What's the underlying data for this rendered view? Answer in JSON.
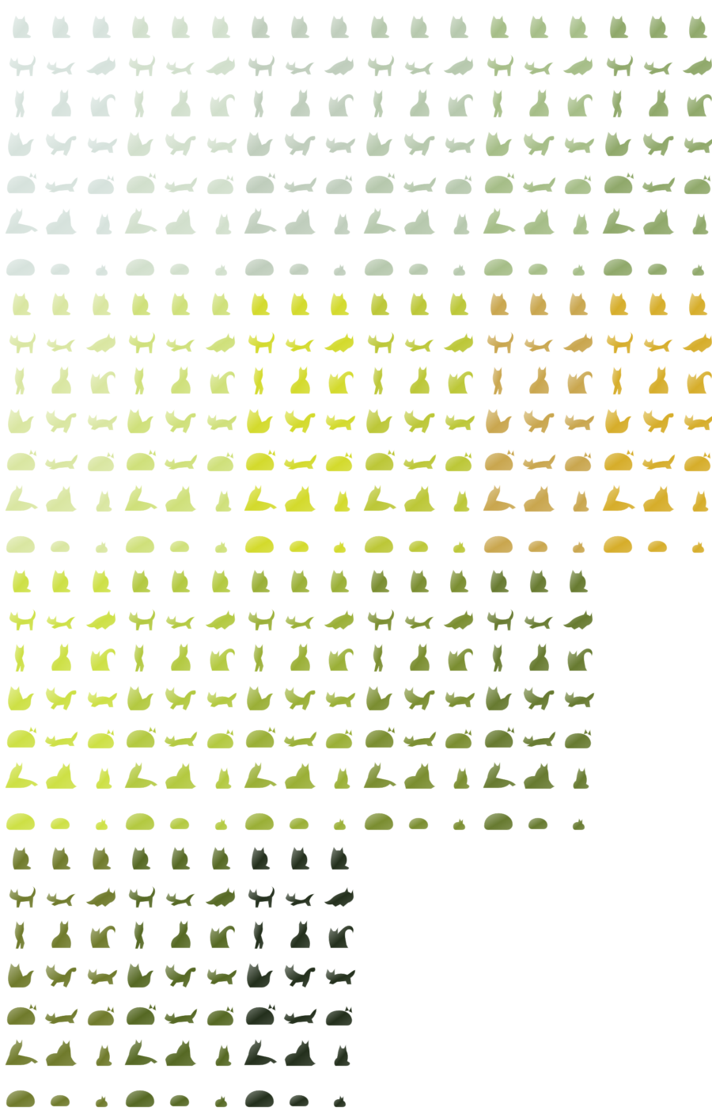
{
  "sheet": {
    "description_name": "cat-sprite-sheet",
    "poses": [
      [
        "cat-sitting-small-icon",
        "cat-sitting-small-icon",
        "cat-sitting-small-icon"
      ],
      [
        "cat-walking-icon",
        "cat-stretching-icon",
        "cat-pouncing-icon"
      ],
      [
        "cat-standing-up-icon",
        "cat-sitting-icon",
        "cat-sitting-tail-curl-icon"
      ],
      [
        "cat-sitting-fluffy-icon",
        "cat-leaping-icon",
        "cat-crouching-icon"
      ],
      [
        "cat-loaf-icon",
        "cat-creeping-icon",
        "cat-curled-icon"
      ],
      [
        "cat-stretching-long-icon",
        "cat-lying-icon",
        "cat-kitten-sitting-icon"
      ],
      [
        "cat-sleeping-ball-icon",
        "cat-sleeping-small-icon",
        "cat-tiny-sleeping-icon"
      ]
    ],
    "blocks": [
      {
        "name": "pale-green-block",
        "variants": [
          "#d6e2dc",
          "#d1dfcc",
          "#bfcdbc",
          "#b6c8ad",
          "#a5bd87",
          "#8fa86a"
        ]
      },
      {
        "name": "yellow-block",
        "variants": [
          "#d9e6a1",
          "#cfe07a",
          "#d3da2c",
          "#bcc737",
          "#c9a64e",
          "#d6ad2a"
        ]
      },
      {
        "name": "olive-block",
        "variants": [
          "#cde045",
          "#b3c940",
          "#9aaf36",
          "#7a8d30",
          "#677a30"
        ]
      },
      {
        "name": "dark-olive-block",
        "variants": [
          "#6f7a2b",
          "#556823",
          "#232f1c"
        ]
      }
    ]
  }
}
